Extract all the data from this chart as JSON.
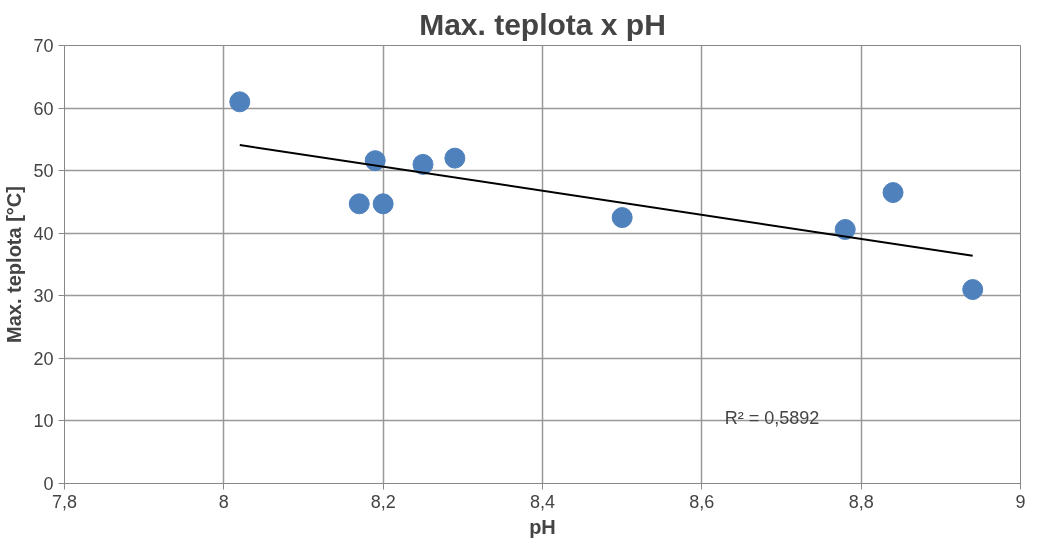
{
  "chart_data": {
    "type": "scatter",
    "title": "Max. teplota x pH",
    "xlabel": "pH",
    "ylabel": "Max. teplota [°C]",
    "x": [
      8.02,
      8.17,
      8.19,
      8.2,
      8.25,
      8.29,
      8.5,
      8.78,
      8.84,
      8.94
    ],
    "series": [
      {
        "color": "#4f81bd",
        "values": [
          61,
          44.7,
          51.6,
          44.7,
          51,
          52,
          42.5,
          40.6,
          46.5,
          31
        ]
      },
      {
        "type": "line",
        "marker": "none",
        "color": "#000000",
        "x": [
          8.02,
          8.94
        ],
        "values": [
          54.1,
          36.4
        ]
      }
    ],
    "xlim": [
      7.8,
      9
    ],
    "ylim": [
      0,
      70
    ],
    "xticks": [
      {
        "value": 7.8,
        "label": "7,8"
      },
      8,
      {
        "value": 8.2,
        "label": "8,2"
      },
      {
        "value": 8.4,
        "label": "8,4"
      },
      {
        "value": 8.6,
        "label": "8,6"
      },
      {
        "value": 8.8,
        "label": "8,8"
      },
      9
    ],
    "yticks": [
      0,
      10,
      20,
      30,
      40,
      50,
      60,
      70
    ],
    "annotations": [
      "R² = 0,5892"
    ],
    "grid": true,
    "marker": "circle"
  }
}
